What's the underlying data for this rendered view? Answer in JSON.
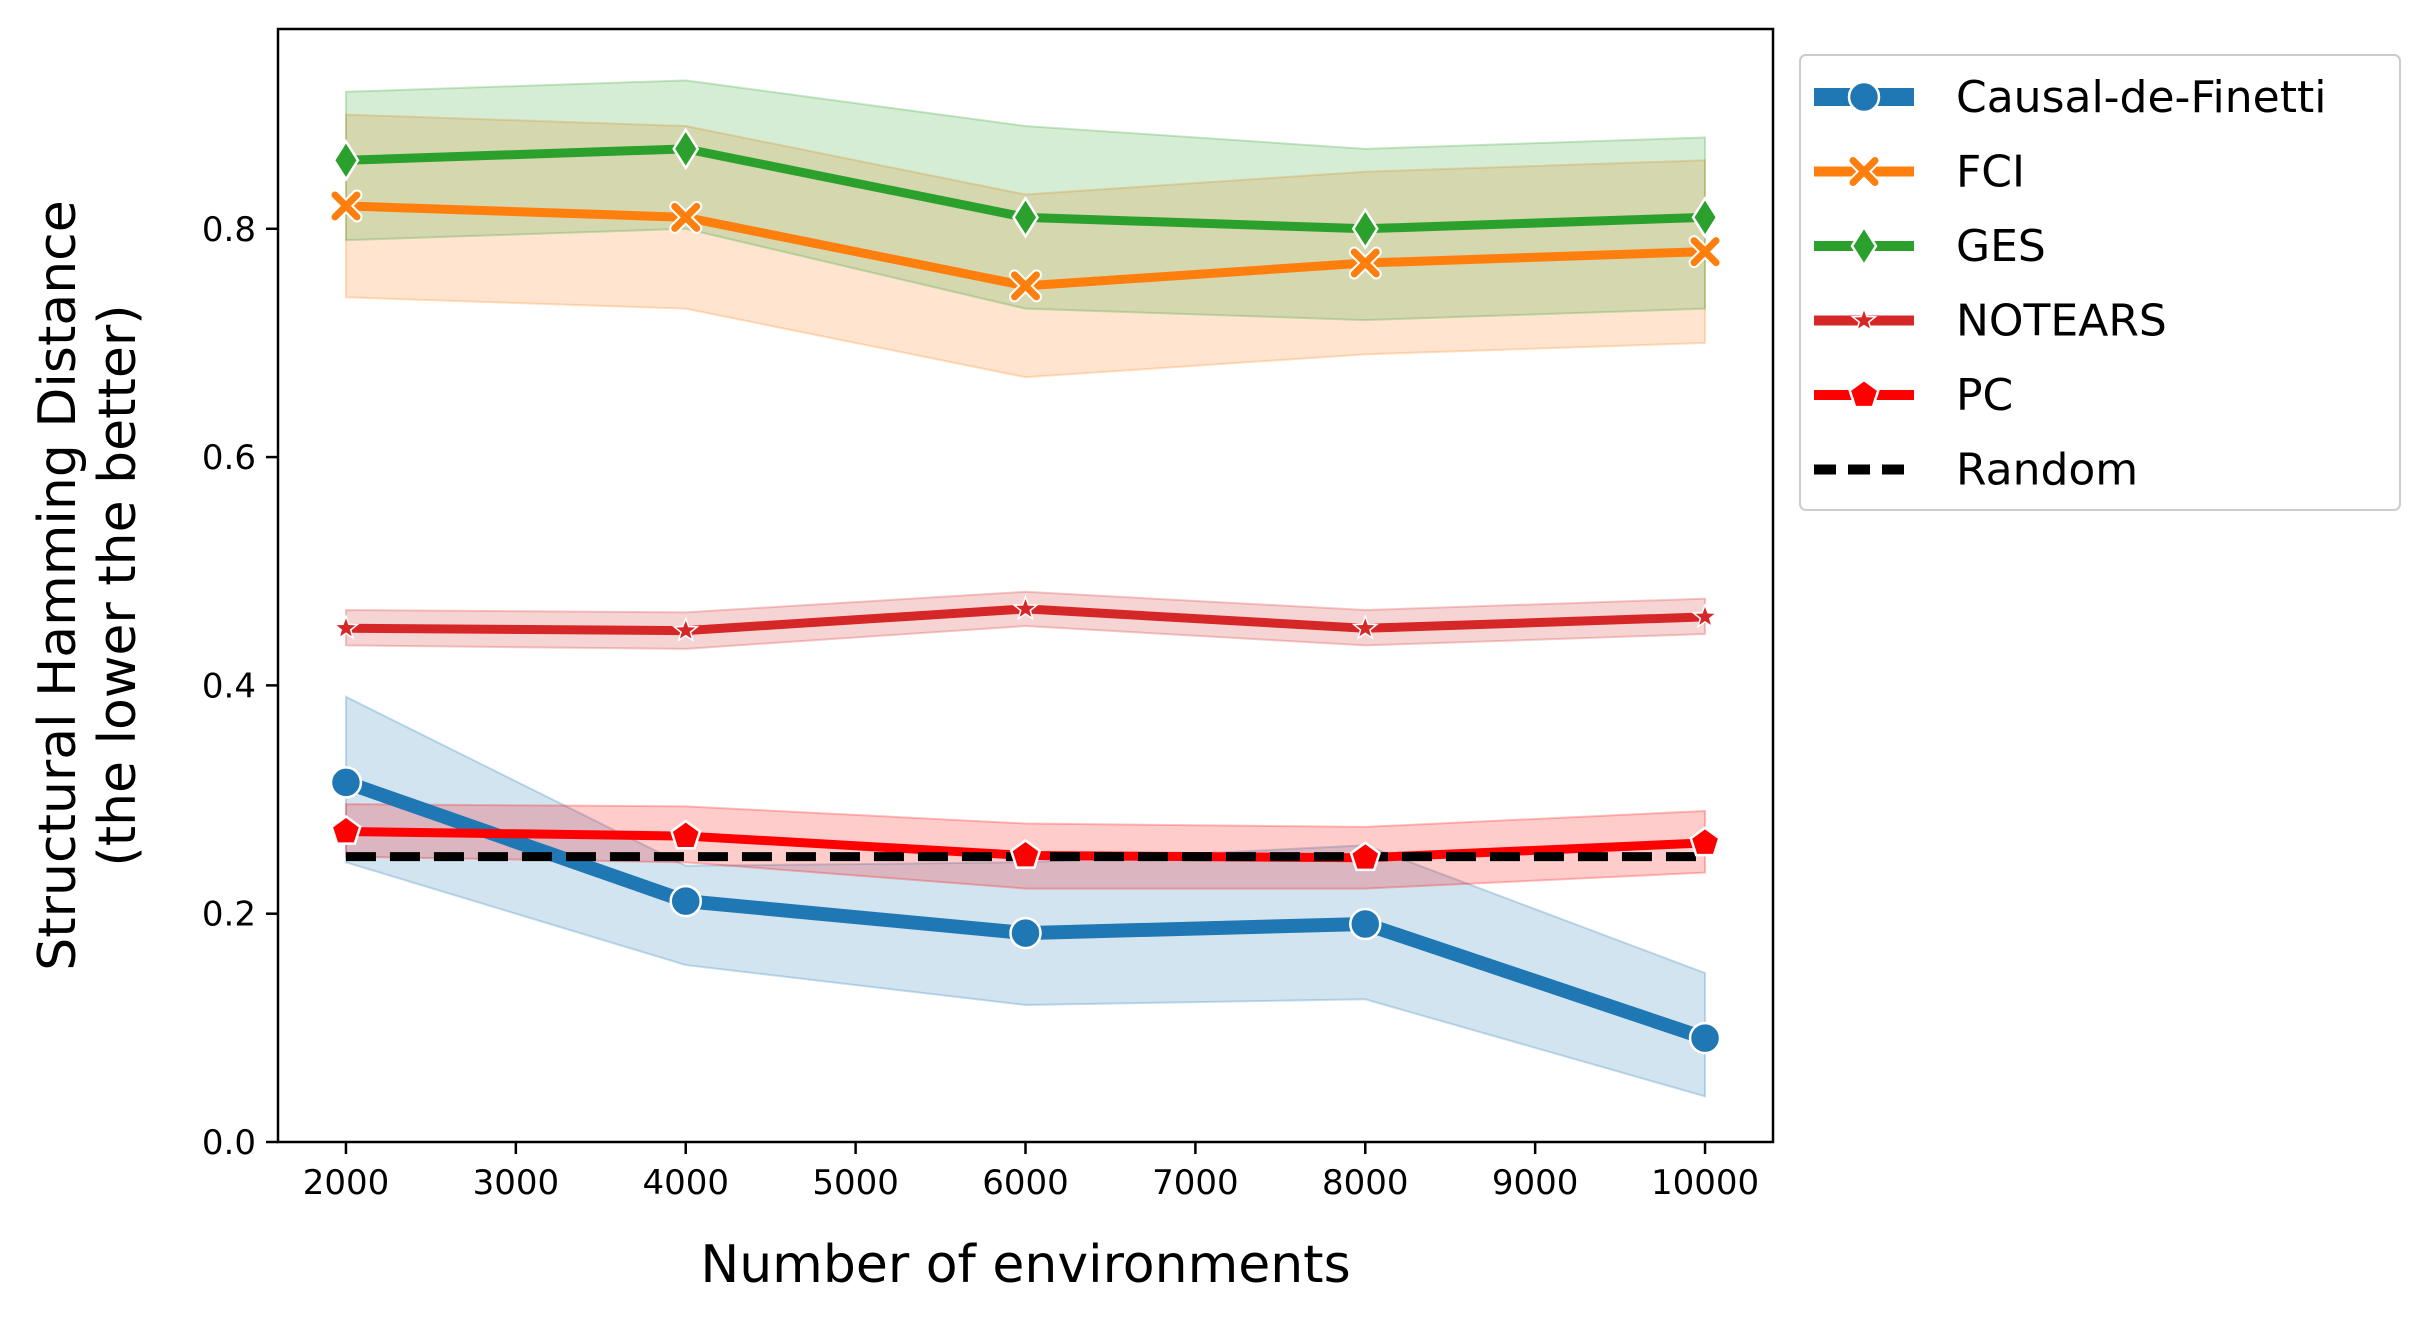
{
  "chart_data": {
    "type": "line",
    "xlabel": "Number of environments",
    "ylabel_line1": "Structural Hamming Distance",
    "ylabel_line2": "(the lower the better)",
    "xlim": [
      1600,
      10400
    ],
    "ylim": [
      0.0,
      0.975
    ],
    "xticks": [
      2000,
      3000,
      4000,
      5000,
      6000,
      7000,
      8000,
      9000,
      10000
    ],
    "yticks": [
      0.0,
      0.2,
      0.4,
      0.6,
      0.8
    ],
    "ytick_labels": [
      "0.0",
      "0.2",
      "0.4",
      "0.6",
      "0.8"
    ],
    "x": [
      2000,
      4000,
      6000,
      8000,
      10000
    ],
    "grid": false,
    "legend_position": "outside-top-right",
    "series": [
      {
        "name": "Causal-de-Finetti",
        "color": "#1f77b4",
        "marker": "circle",
        "dashed": false,
        "values": [
          0.315,
          0.211,
          0.183,
          0.191,
          0.091
        ],
        "lower": [
          0.245,
          0.155,
          0.12,
          0.125,
          0.04
        ],
        "upper": [
          0.39,
          0.242,
          0.245,
          0.26,
          0.148
        ]
      },
      {
        "name": "FCI",
        "color": "#ff7f0e",
        "marker": "x",
        "dashed": false,
        "values": [
          0.82,
          0.81,
          0.75,
          0.77,
          0.78
        ],
        "lower": [
          0.74,
          0.73,
          0.67,
          0.69,
          0.7
        ],
        "upper": [
          0.9,
          0.89,
          0.83,
          0.85,
          0.86
        ]
      },
      {
        "name": "GES",
        "color": "#2ca02c",
        "marker": "diamond",
        "dashed": false,
        "values": [
          0.86,
          0.87,
          0.81,
          0.8,
          0.81
        ],
        "lower": [
          0.79,
          0.8,
          0.73,
          0.72,
          0.73
        ],
        "upper": [
          0.92,
          0.93,
          0.89,
          0.87,
          0.88
        ]
      },
      {
        "name": "NOTEARS",
        "color": "#d62728",
        "marker": "star",
        "dashed": false,
        "values": [
          0.45,
          0.448,
          0.467,
          0.45,
          0.46
        ],
        "lower": [
          0.435,
          0.432,
          0.452,
          0.435,
          0.445
        ],
        "upper": [
          0.466,
          0.464,
          0.482,
          0.466,
          0.476
        ]
      },
      {
        "name": "PC",
        "color": "#ff0000",
        "marker": "pentagon",
        "dashed": false,
        "values": [
          0.272,
          0.268,
          0.251,
          0.249,
          0.262
        ],
        "lower": [
          0.25,
          0.245,
          0.222,
          0.222,
          0.236
        ],
        "upper": [
          0.296,
          0.294,
          0.279,
          0.276,
          0.29
        ]
      },
      {
        "name": "Random",
        "color": "#000000",
        "marker": "none",
        "dashed": true,
        "values": [
          0.25,
          0.25,
          0.25,
          0.25,
          0.25
        ],
        "lower": null,
        "upper": null
      }
    ]
  }
}
